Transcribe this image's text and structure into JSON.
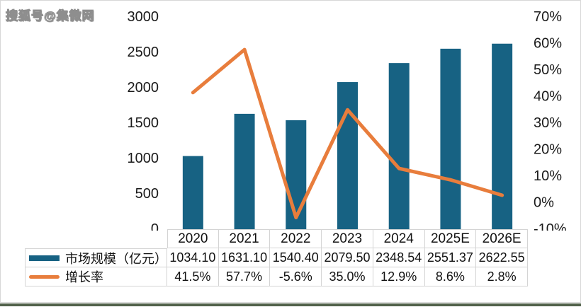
{
  "watermark": "搜狐号@集微网",
  "colors": {
    "bar": "#176283",
    "line": "#e87d3c",
    "table_border": "#d4d4d4",
    "axis_text": "#1a1a1a",
    "bottom_strip": "#51614a",
    "background": "#ffffff"
  },
  "chart_data": {
    "type": "bar",
    "subtype": "bar+line combo",
    "categories": [
      "2020",
      "2021",
      "2022",
      "2023",
      "2024",
      "2025E",
      "2026E"
    ],
    "series": [
      {
        "name": "市场规模（亿元）",
        "type": "bar",
        "axis": "left",
        "values": [
          1034.1,
          1631.1,
          1540.4,
          2079.5,
          2348.54,
          2551.37,
          2622.55
        ],
        "display": [
          "1034.10",
          "1631.10",
          "1540.40",
          "2079.50",
          "2348.54",
          "2551.37",
          "2622.55"
        ]
      },
      {
        "name": "增长率",
        "type": "line",
        "axis": "right",
        "values": [
          41.5,
          57.7,
          -5.6,
          35.0,
          12.9,
          8.6,
          2.8
        ],
        "display": [
          "41.5%",
          "57.7%",
          "-5.6%",
          "35.0%",
          "12.9%",
          "8.6%",
          "2.8%"
        ]
      }
    ],
    "left_axis": {
      "min": 0,
      "max": 3000,
      "ticks": [
        0,
        500,
        1000,
        1500,
        2000,
        2500,
        3000
      ],
      "tick_labels": [
        "0",
        "500",
        "1000",
        "1500",
        "2000",
        "2500",
        "3000"
      ]
    },
    "right_axis": {
      "min": -10,
      "max": 70,
      "ticks": [
        -10,
        0,
        10,
        20,
        30,
        40,
        50,
        60,
        70
      ],
      "tick_labels": [
        "-10%",
        "0%",
        "10%",
        "20%",
        "30%",
        "40%",
        "50%",
        "60%",
        "70%"
      ]
    },
    "grid": false,
    "legend_position": "table-left",
    "title": ""
  }
}
